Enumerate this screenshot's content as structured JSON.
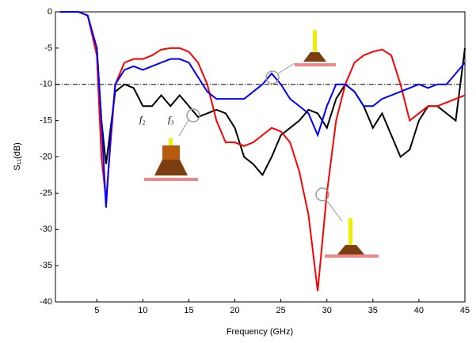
{
  "chart_data": {
    "type": "line",
    "x_label": "Frequency (GHz)",
    "y_label": "S₁₁(dB)",
    "x": [
      1,
      2,
      3,
      4,
      5,
      5.5,
      6,
      6.5,
      7,
      8,
      9,
      10,
      11,
      12,
      13,
      14,
      15,
      16,
      17,
      18,
      19,
      20,
      21,
      22,
      23,
      24,
      25,
      26,
      27,
      28,
      29,
      30,
      31,
      32,
      33,
      34,
      35,
      36,
      37,
      38,
      39,
      40,
      41,
      42,
      43,
      44,
      45
    ],
    "series": [
      {
        "color": "#000000",
        "values": [
          0,
          0,
          0,
          -0.5,
          -5,
          -15,
          -21,
          -16,
          -11,
          -10,
          -10.5,
          -13,
          -13,
          -11.5,
          -13,
          -11.5,
          -13,
          -14.5,
          -14,
          -13.5,
          -14,
          -16,
          -20,
          -21,
          -22.5,
          -20,
          -17,
          -16,
          -15,
          -13.5,
          -14,
          -16,
          -12,
          -10,
          -11,
          -13,
          -16,
          -14,
          -17,
          -20,
          -19,
          -15,
          -13,
          -13,
          -14,
          -15,
          -5
        ]
      },
      {
        "color": "#ff0000",
        "values": [
          0,
          0,
          0,
          -0.5,
          -6,
          -20,
          -26,
          -18,
          -10,
          -7,
          -6.5,
          -6.5,
          -6,
          -5.2,
          -5,
          -5,
          -5.5,
          -7,
          -10,
          -15,
          -18,
          -18,
          -18.5,
          -18,
          -17,
          -16,
          -16.5,
          -18,
          -22,
          -28,
          -38.5,
          -25,
          -15,
          -10,
          -7,
          -6,
          -5.5,
          -5.2,
          -6,
          -10,
          -15,
          -14,
          -13,
          -13,
          -12.5,
          -12,
          -11.5
        ]
      },
      {
        "color": "#0000ff",
        "values": [
          0,
          0,
          0,
          -0.5,
          -5,
          -15,
          -27,
          -17,
          -10,
          -8,
          -7.5,
          -8,
          -7.5,
          -7,
          -6.5,
          -6.5,
          -7,
          -9,
          -11,
          -12,
          -12,
          -12,
          -12,
          -11,
          -10,
          -8.5,
          -10,
          -12,
          -13,
          -14,
          -17,
          -13,
          -10,
          -10,
          -11,
          -13,
          -13,
          -12,
          -11.5,
          -11,
          -10.5,
          -10,
          -10.5,
          -10,
          -10,
          -8.5,
          -7
        ]
      }
    ],
    "reference_line": -10,
    "annotations": [
      "f₂",
      "f₃"
    ],
    "xlim": [
      0.5,
      45
    ],
    "xticks": [
      5,
      10,
      15,
      20,
      25,
      30,
      35,
      40,
      45
    ],
    "ylim": [
      -40,
      0
    ],
    "yticks": [
      0,
      -5,
      -10,
      -15,
      -20,
      -25,
      -30,
      -35,
      -40
    ]
  }
}
